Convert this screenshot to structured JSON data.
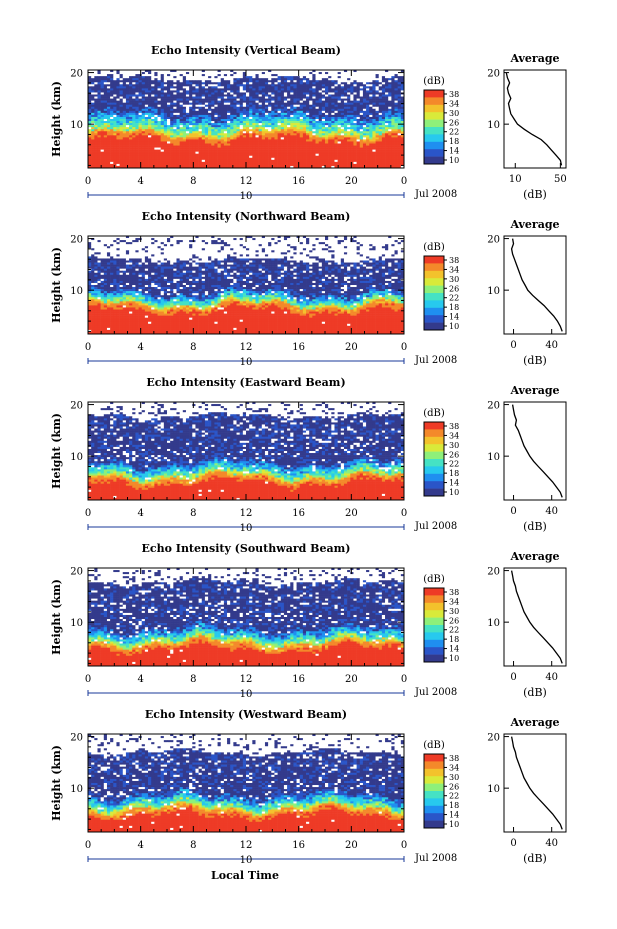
{
  "colors": {
    "colorbar": [
      "#333a8c",
      "#2a55c8",
      "#1f8ff0",
      "#27c9ee",
      "#45e2c4",
      "#8ef07a",
      "#d9ea3a",
      "#f3c22c",
      "#f4892a",
      "#ee3b26"
    ],
    "missing": "#ffffff",
    "axis": "#000000"
  },
  "figure": {
    "date_label": "Jul 2008",
    "day_label": "10",
    "x_axis_title": "Local Time",
    "colorbar_unit": "(dB)",
    "profile_title": "Average",
    "profile_unit": "(dB)",
    "y_axis_title": "Height (km)"
  },
  "chart_data": [
    {
      "type": "heatmap",
      "title": "Echo Intensity (Vertical Beam)",
      "ylabel": "Height (km)",
      "xlabel": "Local Time",
      "x_ticks": [
        "0",
        "4",
        "8",
        "12",
        "16",
        "20",
        "0"
      ],
      "xlim": [
        0,
        24
      ],
      "y_ticks": [
        "20",
        "10"
      ],
      "ylim": [
        1.5,
        20.5
      ],
      "colorbar": {
        "label": "(dB)",
        "ticks": [
          "38",
          "34",
          "30",
          "26",
          "22",
          "18",
          "14",
          "10"
        ],
        "range": [
          10,
          38
        ]
      },
      "layers": {
        "strong_top_km": 8.2,
        "mid_top_km": 12.5,
        "weak_top_km": 18.8
      },
      "profile": {
        "title": "Average",
        "xlabel": "(dB)",
        "x_ticks": [
          "10",
          "50"
        ],
        "xlim": [
          0,
          55
        ],
        "y_ticks": [
          "20",
          "10"
        ],
        "heights": [
          20,
          19,
          18,
          17,
          16,
          15,
          14,
          13,
          12,
          11,
          10,
          9,
          8,
          7,
          6,
          5,
          4,
          3,
          2
        ],
        "values": [
          2,
          3,
          5,
          3,
          4,
          6,
          4,
          5,
          6,
          9,
          12,
          18,
          25,
          33,
          38,
          42,
          46,
          50,
          51
        ]
      }
    },
    {
      "type": "heatmap",
      "title": "Echo Intensity (Northward Beam)",
      "ylabel": "Height (km)",
      "xlabel": "Local Time",
      "x_ticks": [
        "0",
        "4",
        "8",
        "12",
        "16",
        "20",
        "0"
      ],
      "xlim": [
        0,
        24
      ],
      "y_ticks": [
        "20",
        "10"
      ],
      "ylim": [
        1.5,
        20.5
      ],
      "colorbar": {
        "label": "(dB)",
        "ticks": [
          "38",
          "34",
          "30",
          "26",
          "22",
          "18",
          "14",
          "10"
        ],
        "range": [
          10,
          38
        ]
      },
      "layers": {
        "strong_top_km": 7.2,
        "mid_top_km": 9.8,
        "weak_top_km": 15.8
      },
      "profile": {
        "title": "Average",
        "xlabel": "(dB)",
        "x_ticks": [
          "0",
          "40"
        ],
        "xlim": [
          -10,
          55
        ],
        "y_ticks": [
          "20",
          "10"
        ],
        "heights": [
          20,
          19,
          18,
          17,
          16,
          15,
          14,
          13,
          12,
          11,
          10,
          9,
          8,
          7,
          6,
          5,
          4,
          3,
          2
        ],
        "values": [
          -1,
          0,
          -2,
          -1,
          1,
          3,
          5,
          7,
          9,
          12,
          15,
          20,
          26,
          32,
          37,
          42,
          46,
          49,
          51
        ]
      }
    },
    {
      "type": "heatmap",
      "title": "Echo Intensity (Eastward Beam)",
      "ylabel": "Height (km)",
      "xlabel": "Local Time",
      "x_ticks": [
        "0",
        "4",
        "8",
        "12",
        "16",
        "20",
        "0"
      ],
      "xlim": [
        0,
        24
      ],
      "y_ticks": [
        "20",
        "10"
      ],
      "ylim": [
        1.5,
        20.5
      ],
      "colorbar": {
        "label": "(dB)",
        "ticks": [
          "38",
          "34",
          "30",
          "26",
          "22",
          "18",
          "14",
          "10"
        ],
        "range": [
          10,
          38
        ]
      },
      "layers": {
        "strong_top_km": 6.0,
        "mid_top_km": 9.0,
        "weak_top_km": 17.8
      },
      "profile": {
        "title": "Average",
        "xlabel": "(dB)",
        "x_ticks": [
          "0",
          "40"
        ],
        "xlim": [
          -10,
          55
        ],
        "y_ticks": [
          "20",
          "10"
        ],
        "heights": [
          20,
          19,
          18,
          17,
          16,
          15,
          14,
          13,
          12,
          11,
          10,
          9,
          8,
          7,
          6,
          5,
          4,
          3,
          2
        ],
        "values": [
          -1,
          0,
          1,
          3,
          2,
          5,
          7,
          9,
          11,
          14,
          17,
          21,
          26,
          31,
          36,
          41,
          45,
          49,
          51
        ]
      }
    },
    {
      "type": "heatmap",
      "title": "Echo Intensity (Southward Beam)",
      "ylabel": "Height (km)",
      "xlabel": "Local Time",
      "x_ticks": [
        "0",
        "4",
        "8",
        "12",
        "16",
        "20",
        "0"
      ],
      "xlim": [
        0,
        24
      ],
      "y_ticks": [
        "20",
        "10"
      ],
      "ylim": [
        1.5,
        20.5
      ],
      "colorbar": {
        "label": "(dB)",
        "ticks": [
          "38",
          "34",
          "30",
          "26",
          "22",
          "18",
          "14",
          "10"
        ],
        "range": [
          10,
          38
        ]
      },
      "layers": {
        "strong_top_km": 6.0,
        "mid_top_km": 9.0,
        "weak_top_km": 17.8
      },
      "profile": {
        "title": "Average",
        "xlabel": "(dB)",
        "x_ticks": [
          "0",
          "40"
        ],
        "xlim": [
          -10,
          55
        ],
        "y_ticks": [
          "20",
          "10"
        ],
        "heights": [
          20,
          19,
          18,
          17,
          16,
          15,
          14,
          13,
          12,
          11,
          10,
          9,
          8,
          7,
          6,
          5,
          4,
          3,
          2
        ],
        "values": [
          -2,
          -1,
          0,
          2,
          3,
          5,
          7,
          9,
          11,
          14,
          17,
          21,
          26,
          31,
          36,
          41,
          45,
          49,
          51
        ]
      }
    },
    {
      "type": "heatmap",
      "title": "Echo Intensity (Westward Beam)",
      "ylabel": "Height (km)",
      "xlabel": "Local Time",
      "x_ticks": [
        "0",
        "4",
        "8",
        "12",
        "16",
        "20",
        "0"
      ],
      "xlim": [
        0,
        24
      ],
      "y_ticks": [
        "20",
        "10"
      ],
      "ylim": [
        1.5,
        20.5
      ],
      "colorbar": {
        "label": "(dB)",
        "ticks": [
          "38",
          "34",
          "30",
          "26",
          "22",
          "18",
          "14",
          "10"
        ],
        "range": [
          10,
          38
        ]
      },
      "layers": {
        "strong_top_km": 6.0,
        "mid_top_km": 9.0,
        "weak_top_km": 17.0
      },
      "profile": {
        "title": "Average",
        "xlabel": "(dB)",
        "x_ticks": [
          "0",
          "40"
        ],
        "xlim": [
          -10,
          55
        ],
        "y_ticks": [
          "20",
          "10"
        ],
        "heights": [
          20,
          19,
          18,
          17,
          16,
          15,
          14,
          13,
          12,
          11,
          10,
          9,
          8,
          7,
          6,
          5,
          4,
          3,
          2
        ],
        "values": [
          -2,
          -1,
          0,
          2,
          3,
          5,
          7,
          9,
          11,
          14,
          17,
          21,
          26,
          31,
          36,
          41,
          45,
          49,
          51
        ]
      }
    }
  ]
}
